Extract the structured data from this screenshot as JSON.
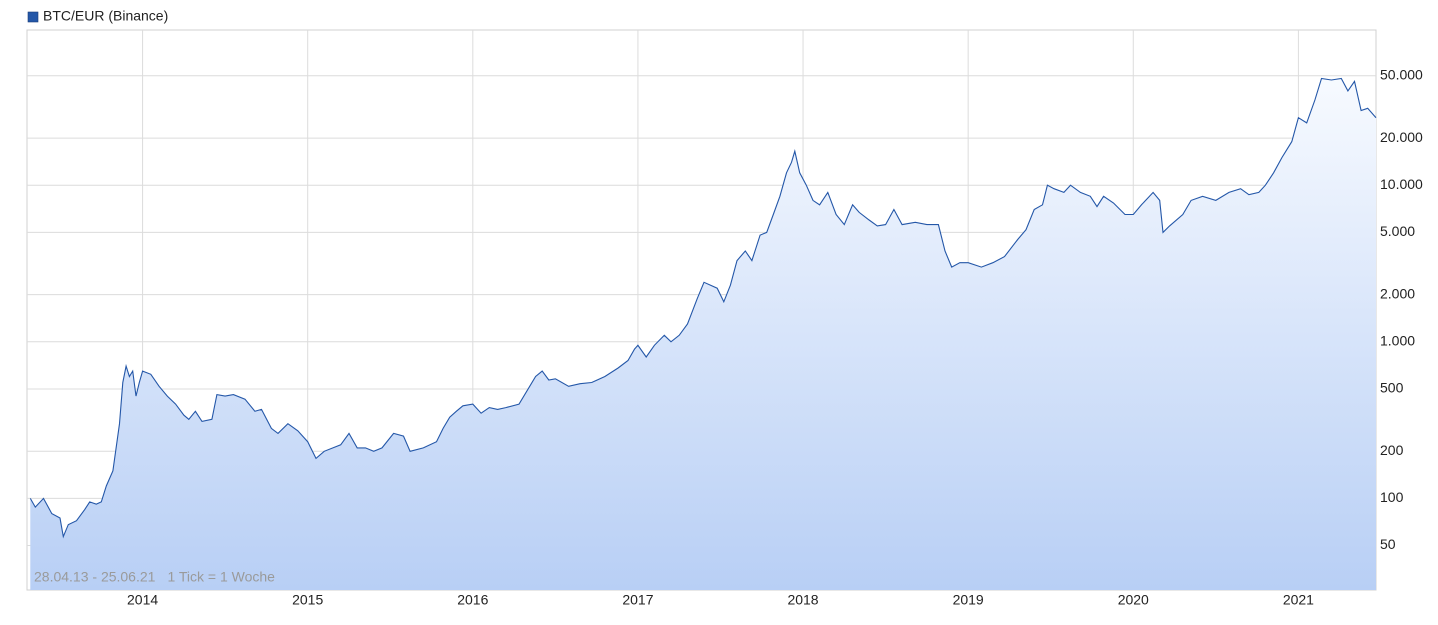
{
  "chart_data": {
    "type": "area",
    "annotations": [
      "28.04.13 - 25.06.21",
      "1 Tick = 1 Woche"
    ],
    "log_scale": true,
    "grid": true,
    "legend": "top-left",
    "xlim": [
      2013.3,
      2021.47
    ],
    "xticks": [
      2014,
      2015,
      2016,
      2017,
      2018,
      2019,
      2020,
      2021
    ],
    "ylim": [
      26,
      98000
    ],
    "yticks": [
      50,
      100,
      200,
      500,
      {
        "value": 1000,
        "label": "1.000"
      },
      {
        "value": 2000,
        "label": "2.000"
      },
      {
        "value": 5000,
        "label": "5.000"
      },
      {
        "value": 10000,
        "label": "10.000"
      },
      {
        "value": 20000,
        "label": "20.000"
      },
      {
        "value": 50000,
        "label": "50.000"
      }
    ],
    "x": [
      2013.32,
      2013.35,
      2013.4,
      2013.45,
      2013.5,
      2013.52,
      2013.55,
      2013.6,
      2013.65,
      2013.68,
      2013.72,
      2013.75,
      2013.78,
      2013.82,
      2013.86,
      2013.88,
      2013.9,
      2013.92,
      2013.94,
      2013.96,
      2013.98,
      2014.0,
      2014.05,
      2014.1,
      2014.15,
      2014.2,
      2014.25,
      2014.28,
      2014.32,
      2014.36,
      2014.42,
      2014.45,
      2014.5,
      2014.55,
      2014.62,
      2014.68,
      2014.72,
      2014.78,
      2014.82,
      2014.88,
      2014.94,
      2015.0,
      2015.05,
      2015.1,
      2015.2,
      2015.25,
      2015.3,
      2015.35,
      2015.4,
      2015.45,
      2015.52,
      2015.58,
      2015.62,
      2015.7,
      2015.78,
      2015.82,
      2015.86,
      2015.9,
      2015.94,
      2016.0,
      2016.05,
      2016.1,
      2016.15,
      2016.2,
      2016.28,
      2016.38,
      2016.42,
      2016.46,
      2016.5,
      2016.58,
      2016.65,
      2016.72,
      2016.8,
      2016.88,
      2016.94,
      2016.98,
      2017.0,
      2017.05,
      2017.1,
      2017.16,
      2017.2,
      2017.25,
      2017.3,
      2017.36,
      2017.4,
      2017.44,
      2017.48,
      2017.52,
      2017.56,
      2017.6,
      2017.65,
      2017.69,
      2017.74,
      2017.78,
      2017.82,
      2017.86,
      2017.9,
      2017.93,
      2017.95,
      2017.98,
      2018.02,
      2018.06,
      2018.1,
      2018.15,
      2018.2,
      2018.25,
      2018.3,
      2018.34,
      2018.4,
      2018.45,
      2018.5,
      2018.55,
      2018.6,
      2018.68,
      2018.75,
      2018.82,
      2018.86,
      2018.9,
      2018.95,
      2019.0,
      2019.08,
      2019.15,
      2019.22,
      2019.3,
      2019.35,
      2019.4,
      2019.45,
      2019.48,
      2019.52,
      2019.58,
      2019.62,
      2019.68,
      2019.74,
      2019.78,
      2019.82,
      2019.88,
      2019.95,
      2020.0,
      2020.05,
      2020.12,
      2020.16,
      2020.18,
      2020.22,
      2020.3,
      2020.35,
      2020.42,
      2020.5,
      2020.58,
      2020.65,
      2020.7,
      2020.76,
      2020.8,
      2020.85,
      2020.9,
      2020.96,
      2021.0,
      2021.05,
      2021.1,
      2021.14,
      2021.2,
      2021.26,
      2021.3,
      2021.34,
      2021.38,
      2021.42,
      2021.47
    ],
    "series": [
      {
        "name": "BTC/EUR (Binance)",
        "color": "#2457a8",
        "values": [
          100,
          88,
          100,
          80,
          75,
          57,
          68,
          72,
          85,
          95,
          92,
          95,
          120,
          150,
          300,
          550,
          700,
          600,
          650,
          450,
          550,
          650,
          620,
          520,
          450,
          400,
          340,
          320,
          360,
          310,
          320,
          460,
          450,
          460,
          430,
          360,
          370,
          280,
          260,
          300,
          270,
          230,
          180,
          200,
          220,
          260,
          210,
          210,
          200,
          210,
          260,
          250,
          200,
          210,
          230,
          280,
          330,
          360,
          390,
          400,
          350,
          380,
          370,
          380,
          400,
          600,
          650,
          570,
          580,
          520,
          540,
          550,
          600,
          680,
          760,
          900,
          950,
          800,
          950,
          1100,
          1000,
          1100,
          1300,
          1900,
          2400,
          2300,
          2200,
          1800,
          2300,
          3300,
          3800,
          3300,
          4800,
          5000,
          6500,
          8500,
          12000,
          14000,
          16500,
          12000,
          10000,
          8000,
          7500,
          9000,
          6500,
          5600,
          7500,
          6700,
          6000,
          5500,
          5600,
          7000,
          5600,
          5800,
          5600,
          5600,
          3800,
          3000,
          3200,
          3200,
          3000,
          3200,
          3500,
          4500,
          5200,
          7000,
          7500,
          10000,
          9500,
          9000,
          10000,
          9000,
          8500,
          7300,
          8500,
          7700,
          6500,
          6500,
          7500,
          9000,
          8000,
          5000,
          5500,
          6500,
          8000,
          8500,
          8000,
          9000,
          9500,
          8700,
          9000,
          10000,
          12000,
          15000,
          19000,
          27000,
          25000,
          35000,
          48000,
          47000,
          48000,
          40000,
          46000,
          30000,
          31000,
          27000
        ]
      }
    ]
  }
}
